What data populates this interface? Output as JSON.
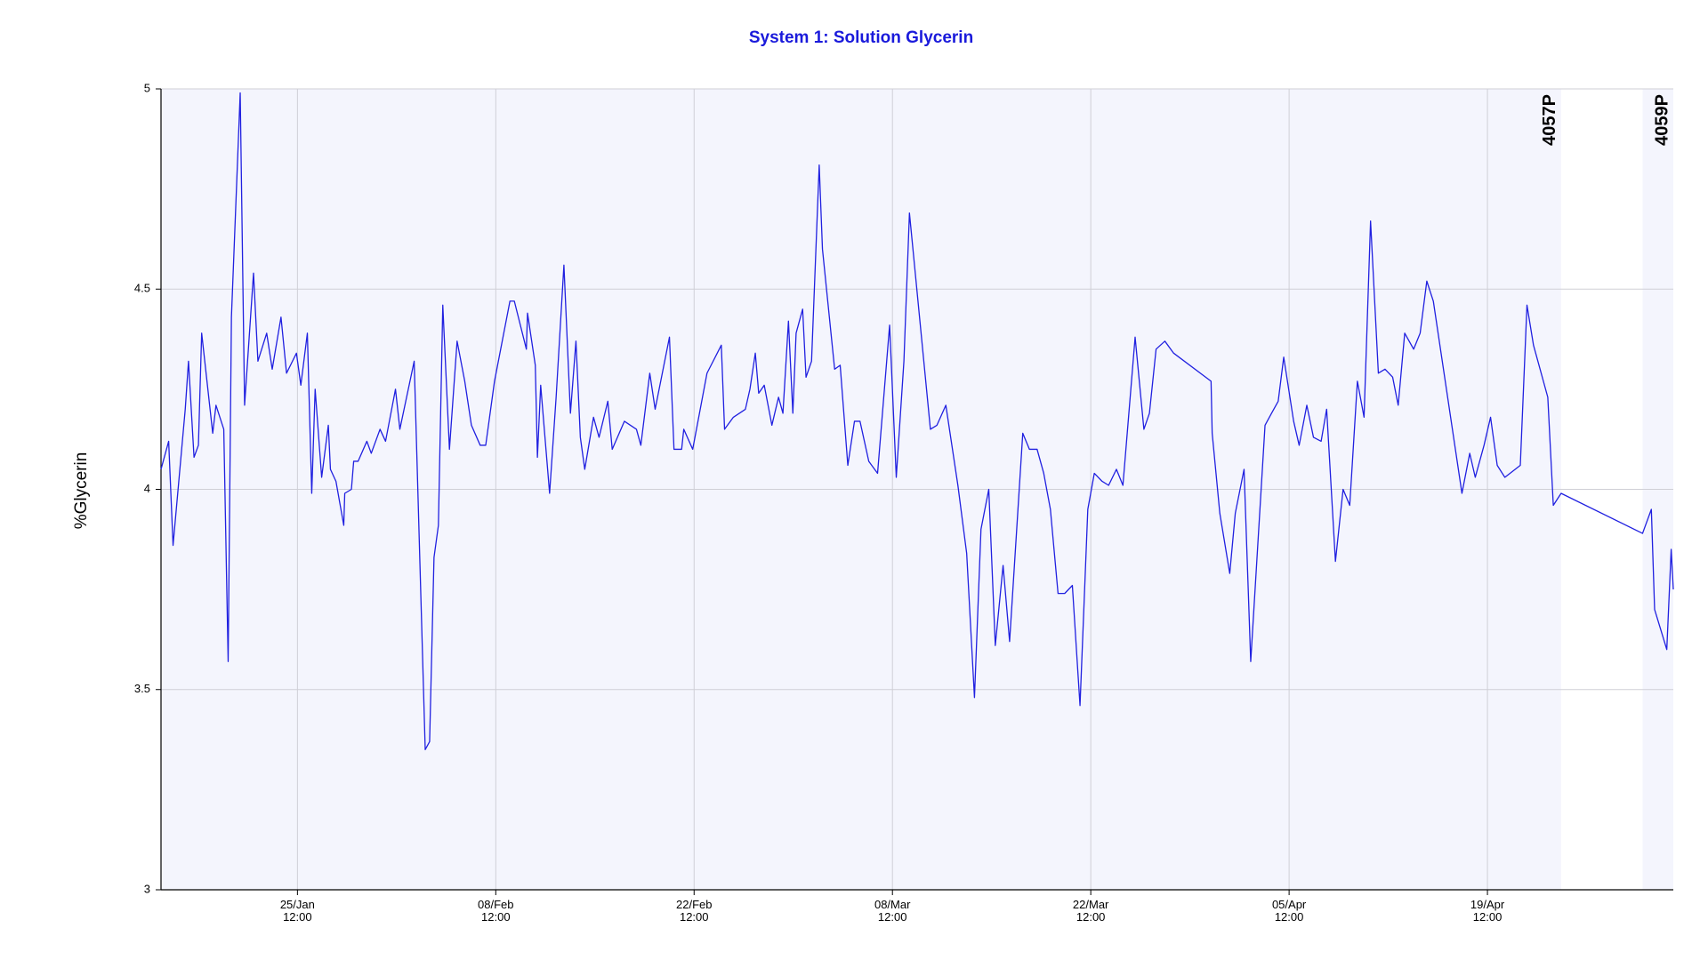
{
  "chart_data": {
    "type": "line",
    "title": "System 1: Solution Glycerin",
    "ylabel": "%Glycerin",
    "color": "#2020e0",
    "grid": true,
    "background_color": "#f4f5fd",
    "xlim": [
      14.87,
      121.62
    ],
    "ylim": [
      3,
      5
    ],
    "yticks": [
      3,
      3.5,
      4,
      4.5,
      5
    ],
    "xticks": [
      {
        "value": 24.5,
        "label": "25/Jan\n12:00"
      },
      {
        "value": 38.5,
        "label": "08/Feb\n12:00"
      },
      {
        "value": 52.5,
        "label": "22/Feb\n12:00"
      },
      {
        "value": 66.5,
        "label": "08/Mar\n12:00"
      },
      {
        "value": 80.5,
        "label": "22/Mar\n12:00"
      },
      {
        "value": 94.5,
        "label": "05/Apr\n12:00"
      },
      {
        "value": 108.5,
        "label": "19/Apr\n12:00"
      }
    ],
    "shaded_spans": [
      [
        14.87,
        113.7
      ],
      [
        119.45,
        121.62
      ]
    ],
    "annotations": [
      {
        "x": 113.7,
        "label": "4057P"
      },
      {
        "x": 121.62,
        "label": "4059P"
      }
    ],
    "x": [
      14.87,
      15.41,
      15.72,
      16.58,
      16.81,
      17.2,
      17.51,
      17.74,
      18.52,
      18.75,
      19.3,
      19.61,
      19.84,
      20.46,
      20.77,
      21.4,
      21.71,
      22.33,
      22.72,
      23.34,
      23.73,
      24.43,
      24.74,
      25.2,
      25.51,
      25.75,
      26.21,
      26.68,
      26.83,
      27.22,
      27.77,
      27.84,
      28.31,
      28.47,
      28.78,
      29.4,
      29.71,
      30.33,
      30.72,
      31.42,
      31.73,
      32.74,
      33.52,
      33.83,
      34.14,
      34.45,
      34.76,
      35.23,
      35.77,
      36.31,
      36.78,
      37.4,
      37.79,
      38.41,
      39.5,
      39.81,
      40.66,
      40.74,
      41.29,
      41.44,
      41.67,
      42.3,
      42.76,
      43.31,
      43.77,
      44.16,
      44.47,
      44.78,
      45.4,
      45.79,
      46.41,
      46.72,
      47.58,
      48.43,
      48.74,
      49.37,
      49.75,
      50.76,
      51.08,
      51.62,
      51.77,
      52.4,
      53.41,
      54.42,
      54.65,
      55.27,
      56.12,
      56.44,
      56.82,
      57.06,
      57.45,
      57.99,
      58.46,
      58.77,
      59.16,
      59.47,
      59.7,
      60.16,
      60.4,
      60.79,
      61.33,
      61.56,
      62.42,
      62.81,
      63.35,
      63.82,
      64.21,
      64.83,
      65.45,
      66.3,
      66.77,
      67.31,
      67.7,
      69.18,
      69.64,
      70.27,
      71.12,
      71.74,
      72.29,
      72.75,
      73.3,
      73.76,
      74.31,
      74.77,
      75.7,
      76.17,
      76.71,
      77.18,
      77.65,
      78.19,
      78.66,
      79.2,
      79.74,
      80.29,
      80.75,
      81.3,
      81.76,
      82.31,
      82.77,
      83.63,
      84.25,
      84.64,
      85.11,
      85.73,
      86.35,
      88.99,
      89.07,
      89.61,
      90.31,
      90.7,
      91.32,
      91.79,
      92.8,
      93.26,
      93.73,
      94.12,
      94.82,
      95.21,
      95.75,
      96.22,
      96.76,
      97.15,
      97.77,
      98.31,
      98.78,
      99.32,
      99.79,
      100.25,
      100.8,
      101.27,
      101.81,
      102.2,
      102.66,
      103.29,
      103.75,
      104.22,
      104.68,
      106.7,
      107.25,
      107.64,
      108.26,
      108.72,
      109.19,
      109.73,
      110.82,
      111.29,
      111.75,
      112.76,
      113.15,
      113.7,
      119.45,
      120.07,
      120.3,
      121.16,
      121.47,
      121.62
    ],
    "values": [
      4.05,
      4.12,
      3.86,
      4.2,
      4.32,
      4.08,
      4.11,
      4.39,
      4.14,
      4.21,
      4.15,
      3.57,
      4.43,
      4.99,
      4.21,
      4.54,
      4.32,
      4.39,
      4.3,
      4.43,
      4.29,
      4.34,
      4.26,
      4.39,
      3.99,
      4.25,
      4.03,
      4.16,
      4.05,
      4.02,
      3.91,
      3.99,
      4.0,
      4.07,
      4.07,
      4.12,
      4.09,
      4.15,
      4.12,
      4.25,
      4.15,
      4.32,
      3.35,
      3.37,
      3.83,
      3.91,
      4.46,
      4.1,
      4.37,
      4.27,
      4.16,
      4.11,
      4.11,
      4.27,
      4.47,
      4.47,
      4.35,
      4.44,
      4.31,
      4.08,
      4.26,
      3.99,
      4.23,
      4.56,
      4.19,
      4.37,
      4.13,
      4.05,
      4.18,
      4.13,
      4.22,
      4.1,
      4.17,
      4.15,
      4.11,
      4.29,
      4.2,
      4.38,
      4.1,
      4.1,
      4.15,
      4.1,
      4.29,
      4.36,
      4.15,
      4.18,
      4.2,
      4.25,
      4.34,
      4.24,
      4.26,
      4.16,
      4.23,
      4.19,
      4.42,
      4.19,
      4.39,
      4.45,
      4.28,
      4.32,
      4.81,
      4.6,
      4.3,
      4.31,
      4.06,
      4.17,
      4.17,
      4.07,
      4.04,
      4.41,
      4.03,
      4.32,
      4.69,
      4.15,
      4.16,
      4.21,
      4.01,
      3.84,
      3.48,
      3.9,
      4.0,
      3.61,
      3.81,
      3.62,
      4.14,
      4.1,
      4.1,
      4.04,
      3.95,
      3.74,
      3.74,
      3.76,
      3.46,
      3.95,
      4.04,
      4.02,
      4.01,
      4.05,
      4.01,
      4.38,
      4.15,
      4.19,
      4.35,
      4.37,
      4.34,
      4.27,
      4.14,
      3.94,
      3.79,
      3.94,
      4.05,
      3.57,
      4.16,
      4.19,
      4.22,
      4.33,
      4.17,
      4.11,
      4.21,
      4.13,
      4.12,
      4.2,
      3.82,
      4.0,
      3.96,
      4.27,
      4.18,
      4.67,
      4.29,
      4.3,
      4.28,
      4.21,
      4.39,
      4.35,
      4.39,
      4.52,
      4.47,
      3.99,
      4.09,
      4.03,
      4.11,
      4.18,
      4.06,
      4.03,
      4.06,
      4.46,
      4.36,
      4.23,
      3.96,
      3.99,
      3.89,
      3.95,
      3.7,
      3.6,
      3.85,
      3.75
    ]
  }
}
